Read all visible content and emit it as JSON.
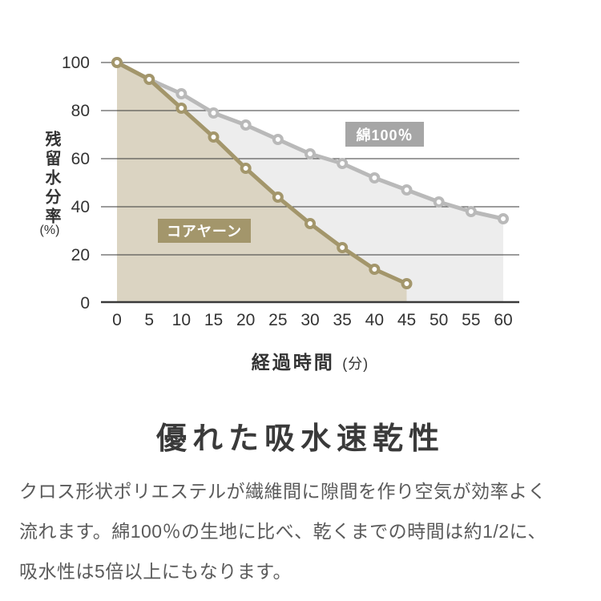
{
  "chart": {
    "y_axis_title": "残留水分率",
    "y_axis_unit": "(%)",
    "x_axis_title": "経過時間",
    "x_axis_unit": "(分)"
  },
  "chart_data": {
    "type": "line",
    "x": [
      0,
      5,
      10,
      15,
      20,
      25,
      30,
      35,
      40,
      45,
      50,
      55,
      60
    ],
    "series": [
      {
        "name": "綿100％",
        "values": [
          100,
          93,
          87,
          79,
          74,
          68,
          62,
          58,
          52,
          47,
          42,
          38,
          35
        ],
        "color": "#b9b9b9",
        "fill": "#ededed",
        "label_bg": "#a6a6a6"
      },
      {
        "name": "コアヤーン",
        "values": [
          100,
          93,
          81,
          69,
          56,
          44,
          33,
          23,
          14,
          8
        ],
        "color": "#a3966b",
        "fill": "#dbd4c2",
        "label_bg": "#a3966b"
      }
    ],
    "xlabel": "経過時間(分)",
    "ylabel": "残留水分率(%)",
    "xlim": [
      0,
      60
    ],
    "ylim": [
      0,
      100
    ],
    "xticks": [
      0,
      5,
      10,
      15,
      20,
      25,
      30,
      35,
      40,
      45,
      50,
      55,
      60
    ],
    "yticks": [
      0,
      20,
      40,
      60,
      80,
      100
    ],
    "grid": true,
    "legend_position": "inline-labels",
    "grid_color": "#3a3a3a",
    "tick_color": "#333333"
  },
  "text": {
    "heading": "優れた吸水速乾性",
    "body_lines": [
      "クロス形状ポリエステルが繊維間に隙間を作り空気が効率よく",
      "流れます。綿100％の生地に比べ、乾くまでの時間は約1/2に、",
      "吸水性は5倍以上にもなります。"
    ]
  }
}
